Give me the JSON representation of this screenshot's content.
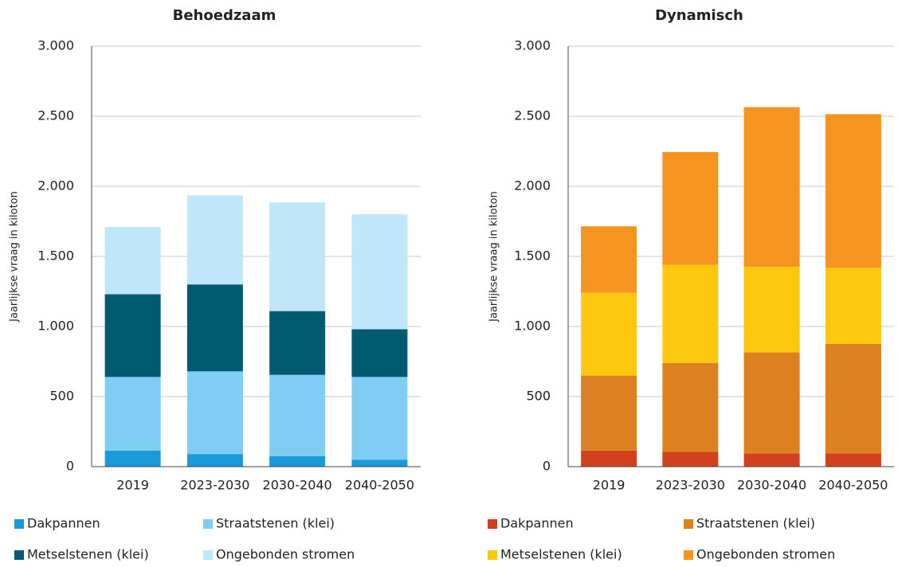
{
  "chart_data": [
    {
      "type": "bar",
      "stacked": true,
      "title": "Behoedzaam",
      "ylabel": "Jaarlijkse vraag in kiloton",
      "categories": [
        "2019",
        "2023-2030",
        "2030-2040",
        "2040-2050"
      ],
      "series": [
        {
          "name": "Dakpannen",
          "color": "#1a9ad6",
          "values": [
            115,
            90,
            75,
            50
          ]
        },
        {
          "name": "Straatstenen (klei)",
          "color": "#7fcdf4",
          "values": [
            525,
            590,
            580,
            590
          ]
        },
        {
          "name": "Metselstenen (klei)",
          "color": "#005a70",
          "values": [
            590,
            620,
            455,
            340
          ]
        },
        {
          "name": "Ongebonden stromen",
          "color": "#bfe6f9",
          "values": [
            480,
            635,
            775,
            820
          ]
        }
      ],
      "ylim": [
        0,
        3000
      ],
      "yticks": [
        0,
        500,
        {
          "value": 1000,
          "label": "1.000"
        },
        {
          "value": 1500,
          "label": "1.500"
        },
        {
          "value": 2000,
          "label": "2.000"
        },
        {
          "value": 2500,
          "label": "2.500"
        },
        {
          "value": 3000,
          "label": "3.000"
        }
      ],
      "grid": true,
      "legend": "bottom"
    },
    {
      "type": "bar",
      "stacked": true,
      "title": "Dynamisch",
      "ylabel": "Jaarlijkse vraag in kiloton",
      "categories": [
        "2019",
        "2023-2030",
        "2030-2040",
        "2040-2050"
      ],
      "series": [
        {
          "name": "Dakpannen",
          "color": "#d2411e",
          "values": [
            115,
            105,
            95,
            95
          ]
        },
        {
          "name": "Straatstenen (klei)",
          "color": "#dc8020",
          "values": [
            535,
            635,
            720,
            780
          ]
        },
        {
          "name": "Metselstenen (klei)",
          "color": "#fdc70e",
          "values": [
            590,
            700,
            610,
            545
          ]
        },
        {
          "name": "Ongebonden stromen",
          "color": "#f5951f",
          "values": [
            475,
            805,
            1140,
            1095
          ]
        }
      ],
      "ylim": [
        0,
        3000
      ],
      "yticks": [
        0,
        500,
        {
          "value": 1000,
          "label": "1.000"
        },
        {
          "value": 1500,
          "label": "1.500"
        },
        {
          "value": 2000,
          "label": "2.000"
        },
        {
          "value": 2500,
          "label": "2.500"
        },
        {
          "value": 3000,
          "label": "3.000"
        }
      ],
      "grid": true,
      "legend": "bottom"
    }
  ]
}
